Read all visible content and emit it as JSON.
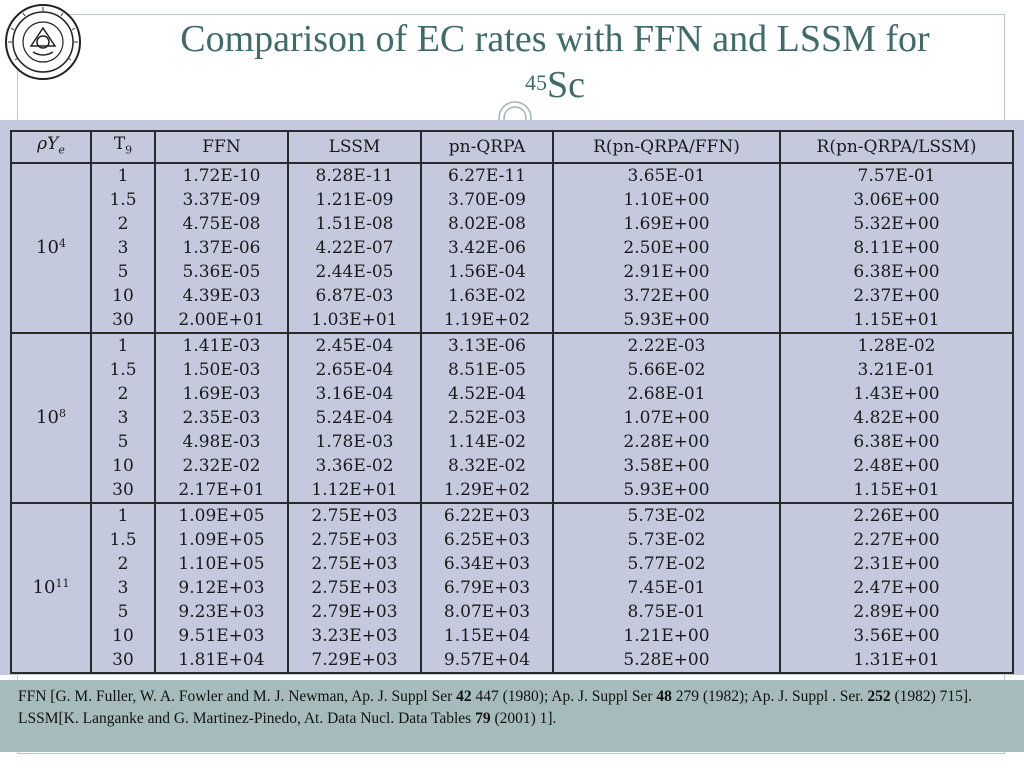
{
  "title": {
    "main": "Comparison of EC rates with FFN and LSSM for",
    "isotope_mass": "45",
    "isotope_symbol": "Sc"
  },
  "table": {
    "headers": {
      "rho_main": "ρY",
      "rho_sub": "e",
      "t9": "T",
      "t9_sub": "9",
      "ffn": "FFN",
      "lssm": "LSSM",
      "pnqrpa": "pn-QRPA",
      "r_ffn": "R(pn-QRPA/FFN)",
      "r_lssm": "R(pn-QRPA/LSSM)"
    },
    "groups": [
      {
        "rho_base": "10",
        "rho_exp": "4",
        "rows": [
          [
            "1",
            "1.72E-10",
            "8.28E-11",
            "6.27E-11",
            "3.65E-01",
            "7.57E-01"
          ],
          [
            "1.5",
            "3.37E-09",
            "1.21E-09",
            "3.70E-09",
            "1.10E+00",
            "3.06E+00"
          ],
          [
            "2",
            "4.75E-08",
            "1.51E-08",
            "8.02E-08",
            "1.69E+00",
            "5.32E+00"
          ],
          [
            "3",
            "1.37E-06",
            "4.22E-07",
            "3.42E-06",
            "2.50E+00",
            "8.11E+00"
          ],
          [
            "5",
            "5.36E-05",
            "2.44E-05",
            "1.56E-04",
            "2.91E+00",
            "6.38E+00"
          ],
          [
            "10",
            "4.39E-03",
            "6.87E-03",
            "1.63E-02",
            "3.72E+00",
            "2.37E+00"
          ],
          [
            "30",
            "2.00E+01",
            "1.03E+01",
            "1.19E+02",
            "5.93E+00",
            "1.15E+01"
          ]
        ]
      },
      {
        "rho_base": "10",
        "rho_exp": "8",
        "rows": [
          [
            "1",
            "1.41E-03",
            "2.45E-04",
            "3.13E-06",
            "2.22E-03",
            "1.28E-02"
          ],
          [
            "1.5",
            "1.50E-03",
            "2.65E-04",
            "8.51E-05",
            "5.66E-02",
            "3.21E-01"
          ],
          [
            "2",
            "1.69E-03",
            "3.16E-04",
            "4.52E-04",
            "2.68E-01",
            "1.43E+00"
          ],
          [
            "3",
            "2.35E-03",
            "5.24E-04",
            "2.52E-03",
            "1.07E+00",
            "4.82E+00"
          ],
          [
            "5",
            "4.98E-03",
            "1.78E-03",
            "1.14E-02",
            "2.28E+00",
            "6.38E+00"
          ],
          [
            "10",
            "2.32E-02",
            "3.36E-02",
            "8.32E-02",
            "3.58E+00",
            "2.48E+00"
          ],
          [
            "30",
            "2.17E+01",
            "1.12E+01",
            "1.29E+02",
            "5.93E+00",
            "1.15E+01"
          ]
        ]
      },
      {
        "rho_base": "10",
        "rho_exp": "11",
        "rows": [
          [
            "1",
            "1.09E+05",
            "2.75E+03",
            "6.22E+03",
            "5.73E-02",
            "2.26E+00"
          ],
          [
            "1.5",
            "1.09E+05",
            "2.75E+03",
            "6.25E+03",
            "5.73E-02",
            "2.27E+00"
          ],
          [
            "2",
            "1.10E+05",
            "2.75E+03",
            "6.34E+03",
            "5.77E-02",
            "2.31E+00"
          ],
          [
            "3",
            "9.12E+03",
            "2.75E+03",
            "6.79E+03",
            "7.45E-01",
            "2.47E+00"
          ],
          [
            "5",
            "9.23E+03",
            "2.79E+03",
            "8.07E+03",
            "8.75E-01",
            "2.89E+00"
          ],
          [
            "10",
            "9.51E+03",
            "3.23E+03",
            "1.15E+04",
            "1.21E+00",
            "3.56E+00"
          ],
          [
            "30",
            "1.81E+04",
            "7.29E+03",
            "9.57E+04",
            "5.28E+00",
            "1.31E+01"
          ]
        ]
      }
    ]
  },
  "references": {
    "ffn": {
      "a": "FFN [G. M. Fuller, W. A. Fowler and M. J. Newman, Ap. J. Suppl Ser ",
      "b1": "42",
      "c": " 447 (1980); Ap. J. Suppl Ser ",
      "b2": "48",
      "d": " 279 (1982); Ap. J. Suppl . Ser. ",
      "b3": "252",
      "e": " (1982) 715]."
    },
    "lssm": {
      "a": "LSSM[K. Langanke and G. Martinez-Pinedo, At. Data Nucl. Data Tables ",
      "b": "79",
      "c": "  (2001) 1]."
    }
  },
  "colors": {
    "title": "#3f6b6b",
    "table_bg": "#c4c9dd",
    "footer_bg": "#a6bcbc"
  }
}
